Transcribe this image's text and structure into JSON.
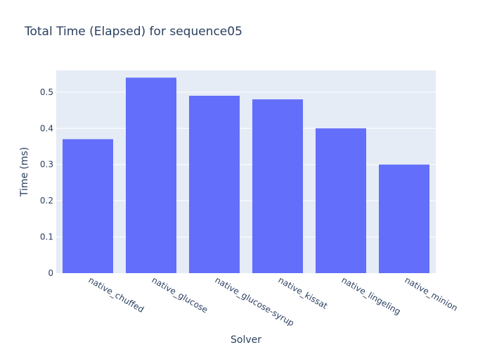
{
  "chart_data": {
    "type": "bar",
    "title": "Total Time (Elapsed) for sequence05",
    "xlabel": "Solver",
    "ylabel": "Time (ms)",
    "categories": [
      "native_chuffed",
      "native_glucose",
      "native_glucose-syrup",
      "native_kissat",
      "native_lingeling",
      "native_minion"
    ],
    "values": [
      0.37,
      0.54,
      0.49,
      0.48,
      0.4,
      0.3
    ],
    "ylim": [
      0,
      0.56
    ],
    "yticks": [
      0,
      0.1,
      0.2,
      0.3,
      0.4,
      0.5
    ],
    "ytick_labels": [
      "0",
      "0.1",
      "0.2",
      "0.3",
      "0.4",
      "0.5"
    ],
    "grid": true,
    "colors": {
      "bar": "#636efa",
      "plot_bg": "#e5ecf6",
      "grid": "#ffffff",
      "text": "#2a3f5f"
    }
  }
}
